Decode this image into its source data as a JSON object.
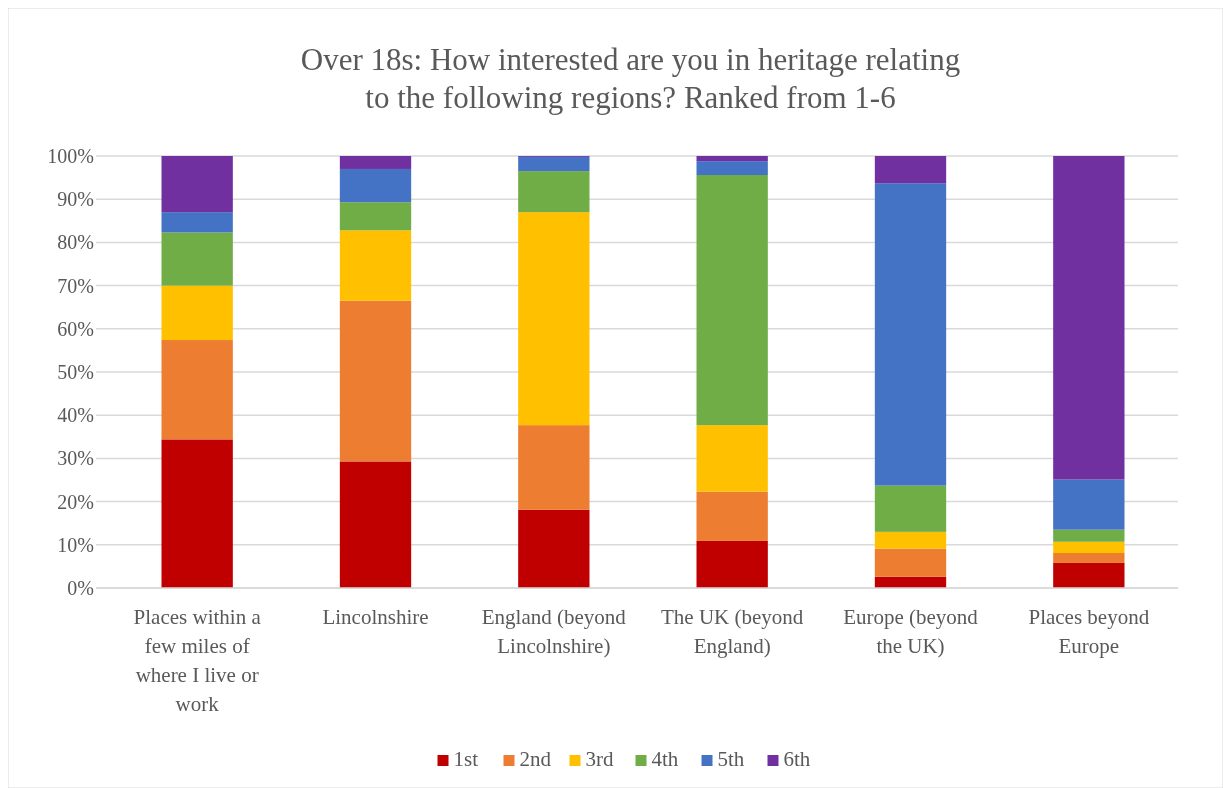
{
  "chart_data": {
    "type": "bar",
    "stacked": true,
    "title": "Over 18s: How interested are you in heritage relating to the following regions? Ranked from 1-6",
    "categories": [
      "Places within a few miles of where I live or work",
      "Lincolnshire",
      "England (beyond Lincolnshire)",
      "The UK (beyond England)",
      "Europe (beyond the UK)",
      "Places beyond Europe"
    ],
    "series": [
      {
        "name": "1st",
        "color": "#c00000",
        "values": [
          34.4,
          29.3,
          18.1,
          10.9,
          2.6,
          5.8
        ]
      },
      {
        "name": "2nd",
        "color": "#ed7d31",
        "values": [
          23.0,
          37.2,
          19.6,
          11.4,
          6.5,
          2.3
        ]
      },
      {
        "name": "3rd",
        "color": "#ffc000",
        "values": [
          12.6,
          16.3,
          49.3,
          15.4,
          3.9,
          2.6
        ]
      },
      {
        "name": "4th",
        "color": "#70ad47",
        "values": [
          12.3,
          6.5,
          9.5,
          57.9,
          10.7,
          2.8
        ]
      },
      {
        "name": "5th",
        "color": "#4472c4",
        "values": [
          4.7,
          7.7,
          3.3,
          3.2,
          70.0,
          11.6
        ]
      },
      {
        "name": "6th",
        "color": "#7030a0",
        "values": [
          13.0,
          3.0,
          0.2,
          1.2,
          6.3,
          74.9
        ]
      }
    ],
    "ylim": [
      0,
      100
    ],
    "yticks": [
      {
        "value": 0,
        "label": "0%"
      },
      {
        "value": 10,
        "label": "10%"
      },
      {
        "value": 20,
        "label": "20%"
      },
      {
        "value": 30,
        "label": "30%"
      },
      {
        "value": 40,
        "label": "40%"
      },
      {
        "value": 50,
        "label": "50%"
      },
      {
        "value": 60,
        "label": "60%"
      },
      {
        "value": 70,
        "label": "70%"
      },
      {
        "value": 80,
        "label": "80%"
      },
      {
        "value": 90,
        "label": "90%"
      },
      {
        "value": 100,
        "label": "100%"
      }
    ],
    "grid": "y",
    "legend": "bottom"
  }
}
